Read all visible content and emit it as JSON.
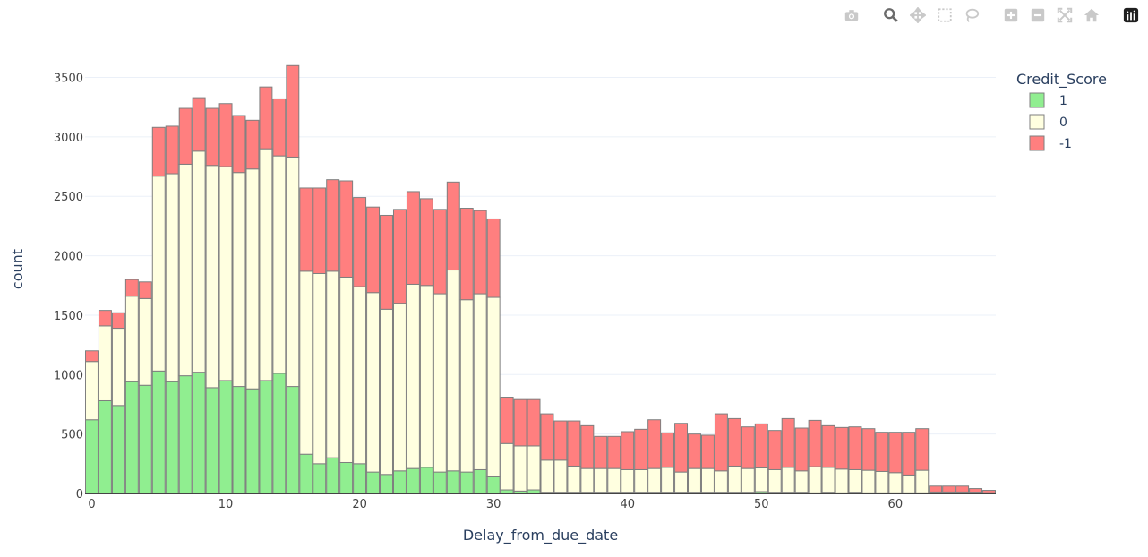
{
  "modebar": {
    "buttons": [
      "camera-icon",
      "zoom-icon",
      "pan-icon",
      "box-select-icon",
      "lasso-icon",
      "zoom-in-icon",
      "zoom-out-icon",
      "autoscale-icon",
      "reset-axes-icon",
      "plotly-logo-icon"
    ]
  },
  "colors": {
    "1": "#90ee90",
    "0": "#ffffe0",
    "-1": "#ff7f7f",
    "bar_outline": "#7f7f7f",
    "grid": "#ebf0f8",
    "text": "#2a3f5f"
  },
  "chart_data": {
    "type": "bar",
    "barmode": "stack",
    "xlabel": "Delay_from_due_date",
    "ylabel": "count",
    "xlim": [
      -0.5,
      67.5
    ],
    "ylim": [
      0,
      3700
    ],
    "xticks": [
      0,
      10,
      20,
      30,
      40,
      50,
      60
    ],
    "yticks": [
      0,
      500,
      1000,
      1500,
      2000,
      2500,
      3000,
      3500
    ],
    "legend_title": "Credit_Score",
    "legend_position": "top-right",
    "x": [
      0,
      1,
      2,
      3,
      4,
      5,
      6,
      7,
      8,
      9,
      10,
      11,
      12,
      13,
      14,
      15,
      16,
      17,
      18,
      19,
      20,
      21,
      22,
      23,
      24,
      25,
      26,
      27,
      28,
      29,
      30,
      31,
      32,
      33,
      34,
      35,
      36,
      37,
      38,
      39,
      40,
      41,
      42,
      43,
      44,
      45,
      46,
      47,
      48,
      49,
      50,
      51,
      52,
      53,
      54,
      55,
      56,
      57,
      58,
      59,
      60,
      61,
      62,
      63,
      64,
      65,
      66,
      67
    ],
    "series": [
      {
        "name": "1",
        "values": [
          620,
          780,
          740,
          940,
          910,
          1030,
          940,
          990,
          1020,
          890,
          950,
          900,
          880,
          950,
          1010,
          900,
          330,
          250,
          300,
          260,
          250,
          180,
          160,
          190,
          210,
          220,
          180,
          190,
          180,
          200,
          140,
          30,
          20,
          30,
          10,
          10,
          10,
          10,
          10,
          10,
          10,
          10,
          10,
          10,
          10,
          10,
          10,
          10,
          10,
          10,
          15,
          10,
          10,
          10,
          5,
          10,
          5,
          10,
          5,
          5,
          5,
          5,
          5,
          2,
          2,
          2,
          1,
          1
        ]
      },
      {
        "name": "0",
        "values": [
          490,
          630,
          650,
          720,
          730,
          1640,
          1750,
          1780,
          1860,
          1870,
          1800,
          1800,
          1850,
          1950,
          1830,
          1930,
          1540,
          1600,
          1570,
          1560,
          1490,
          1510,
          1390,
          1410,
          1550,
          1530,
          1500,
          1690,
          1450,
          1480,
          1510,
          390,
          380,
          370,
          270,
          270,
          220,
          200,
          200,
          200,
          190,
          190,
          200,
          210,
          170,
          200,
          200,
          180,
          220,
          200,
          200,
          190,
          210,
          180,
          220,
          210,
          200,
          190,
          190,
          180,
          170,
          150,
          190,
          10,
          10,
          10,
          10,
          5
        ]
      },
      {
        "name": "-1",
        "values": [
          90,
          130,
          130,
          140,
          140,
          410,
          400,
          470,
          450,
          480,
          530,
          480,
          410,
          520,
          480,
          770,
          700,
          720,
          770,
          810,
          750,
          720,
          790,
          790,
          780,
          730,
          710,
          740,
          770,
          700,
          660,
          390,
          390,
          390,
          390,
          330,
          380,
          360,
          270,
          270,
          320,
          340,
          410,
          290,
          410,
          290,
          280,
          480,
          400,
          350,
          370,
          330,
          410,
          360,
          390,
          350,
          350,
          360,
          350,
          330,
          340,
          360,
          350,
          50,
          50,
          50,
          30,
          20
        ]
      }
    ]
  }
}
